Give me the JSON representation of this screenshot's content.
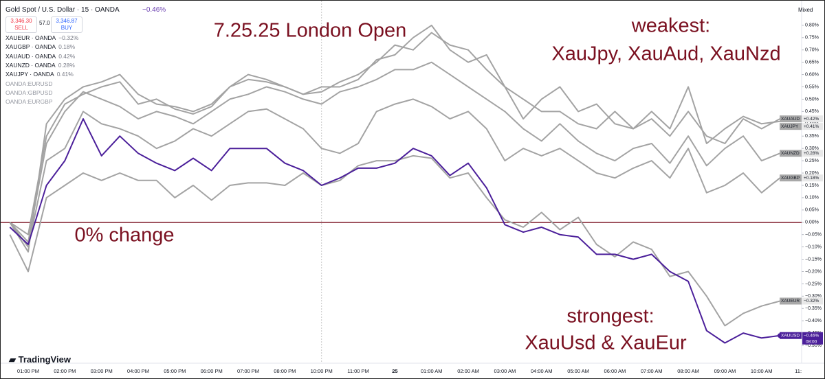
{
  "ui": {
    "symbol": "Gold Spot / U.S. Dollar · 15 · OANDA",
    "change": "−0.46%",
    "sell_price": "3,346.30",
    "sell": "SELL",
    "spread": "57.0",
    "buy_price": "3,346.87",
    "buy": "BUY",
    "indicators": [
      "OANDA:EURUSD",
      "OANDA:GBPUSD",
      "OANDA:EURGBP"
    ],
    "scale_mode": "Mixed",
    "logo": "TradingView",
    "countdown": "08:00"
  },
  "chart_data": {
    "type": "line",
    "annotations": [
      "7.25.25 London Open",
      "weakest:",
      "XauJpy, XauAud, XauNzd",
      "0% change",
      "strongest:",
      "XauUsd & XauEur"
    ],
    "categories": [
      null,
      "01:00 PM",
      null,
      "02:00 PM",
      null,
      "03:00 PM",
      null,
      "04:00 PM",
      null,
      "05:00 PM",
      null,
      "06:00 PM",
      null,
      "07:00 PM",
      null,
      "08:00 PM",
      null,
      "10:00 PM",
      null,
      "11:00 PM",
      null,
      "25",
      null,
      "01:00 AM",
      null,
      "02:00 AM",
      null,
      "03:00 AM",
      null,
      "04:00 AM",
      null,
      "05:00 AM",
      null,
      "06:00 AM",
      null,
      "07:00 AM",
      null,
      "08:00 AM",
      null,
      "09:00 AM",
      null,
      "10:00 AM",
      null,
      "11:"
    ],
    "series": [
      {
        "name": "XAUEUR",
        "legend": "XAUEUR · OANDA",
        "legend_value": "−0.32%",
        "color": "#a3a3a3",
        "values": [
          -0.05,
          -0.2,
          0.1,
          0.15,
          0.2,
          0.17,
          0.2,
          0.17,
          0.17,
          0.1,
          0.15,
          0.09,
          0.15,
          0.16,
          0.16,
          0.15,
          0.2,
          0.15,
          0.17,
          0.23,
          0.25,
          0.25,
          0.27,
          0.26,
          0.18,
          0.2,
          0.1,
          0.01,
          -0.02,
          0.04,
          -0.03,
          0.02,
          -0.09,
          -0.14,
          -0.08,
          -0.11,
          -0.22,
          -0.2,
          -0.3,
          -0.42,
          -0.37,
          -0.34,
          -0.32,
          null
        ],
        "value_labels": [
          null,
          null,
          null,
          null,
          null,
          null,
          null,
          null,
          null,
          null,
          null,
          null,
          null,
          null,
          null,
          null,
          null,
          null,
          null,
          null,
          null,
          null,
          null,
          null,
          null,
          null,
          null,
          null,
          null,
          null,
          null,
          null,
          null,
          null,
          null,
          null,
          null,
          null,
          null,
          null,
          null,
          null,
          "−0.32%",
          null
        ]
      },
      {
        "name": "XAUGBP",
        "legend": "XAUGBP · OANDA",
        "legend_value": "0.18%",
        "color": "#a3a3a3",
        "values": [
          0,
          -0.1,
          0.25,
          0.3,
          0.45,
          0.4,
          0.38,
          0.35,
          0.3,
          0.33,
          0.38,
          0.35,
          0.4,
          0.45,
          0.46,
          0.42,
          0.38,
          0.3,
          0.28,
          0.32,
          0.45,
          0.48,
          0.5,
          0.47,
          0.42,
          0.45,
          0.38,
          0.25,
          0.3,
          0.27,
          0.3,
          0.25,
          0.2,
          0.18,
          0.22,
          0.25,
          0.18,
          0.3,
          0.12,
          0.15,
          0.2,
          0.12,
          0.18,
          null
        ],
        "value_labels": [
          null,
          null,
          null,
          null,
          null,
          null,
          null,
          null,
          null,
          null,
          null,
          null,
          null,
          null,
          null,
          null,
          null,
          null,
          null,
          null,
          null,
          null,
          null,
          null,
          null,
          null,
          null,
          null,
          null,
          null,
          null,
          null,
          null,
          null,
          null,
          null,
          null,
          null,
          null,
          null,
          null,
          null,
          "+0.18%",
          null
        ]
      },
      {
        "name": "XAUAUD",
        "legend": "XAUAUD · OANDA",
        "legend_value": "0.42%",
        "color": "#a3a3a3",
        "values": [
          0,
          -0.05,
          0.35,
          0.48,
          0.52,
          0.55,
          0.57,
          0.48,
          0.5,
          0.46,
          0.44,
          0.47,
          0.55,
          0.58,
          0.57,
          0.55,
          0.52,
          0.53,
          0.57,
          0.6,
          0.65,
          0.72,
          0.7,
          0.77,
          0.72,
          0.7,
          0.62,
          0.55,
          0.5,
          0.45,
          0.45,
          0.4,
          0.38,
          0.45,
          0.38,
          0.42,
          0.35,
          0.45,
          0.35,
          0.32,
          0.42,
          0.38,
          0.42,
          null
        ],
        "value_labels": [
          null,
          null,
          null,
          null,
          null,
          null,
          null,
          null,
          null,
          null,
          null,
          null,
          null,
          null,
          null,
          null,
          null,
          null,
          null,
          null,
          null,
          null,
          null,
          null,
          null,
          null,
          null,
          null,
          null,
          null,
          null,
          null,
          null,
          null,
          null,
          null,
          null,
          null,
          null,
          null,
          null,
          null,
          "+0.42%",
          null
        ]
      },
      {
        "name": "XAUNZD",
        "legend": "XAUNZD · OANDA",
        "legend_value": "0.28%",
        "color": "#a3a3a3",
        "values": [
          0,
          -0.08,
          0.32,
          0.45,
          0.53,
          0.5,
          0.47,
          0.42,
          0.45,
          0.43,
          0.4,
          0.45,
          0.5,
          0.52,
          0.55,
          0.53,
          0.5,
          0.48,
          0.53,
          0.55,
          0.58,
          0.62,
          0.62,
          0.65,
          0.6,
          0.55,
          0.5,
          0.45,
          0.38,
          0.33,
          0.4,
          0.33,
          0.28,
          0.25,
          0.3,
          0.32,
          0.24,
          0.35,
          0.23,
          0.3,
          0.35,
          0.25,
          0.28,
          null
        ],
        "value_labels": [
          null,
          null,
          null,
          null,
          null,
          null,
          null,
          null,
          null,
          null,
          null,
          null,
          null,
          null,
          null,
          null,
          null,
          null,
          null,
          null,
          null,
          null,
          null,
          null,
          null,
          null,
          null,
          null,
          null,
          null,
          null,
          null,
          null,
          null,
          null,
          null,
          null,
          null,
          null,
          null,
          null,
          null,
          "+0.28%",
          null
        ]
      },
      {
        "name": "XAUJPY",
        "legend": "XAUJPY · OANDA",
        "legend_value": "0.41%",
        "color": "#a3a3a3",
        "values": [
          0,
          -0.12,
          0.4,
          0.5,
          0.55,
          0.57,
          0.6,
          0.52,
          0.48,
          0.47,
          0.45,
          0.48,
          0.55,
          0.6,
          0.58,
          0.55,
          0.52,
          0.55,
          0.55,
          0.58,
          0.66,
          0.68,
          0.75,
          0.8,
          0.7,
          0.65,
          0.68,
          0.55,
          0.42,
          0.5,
          0.55,
          0.45,
          0.48,
          0.4,
          0.38,
          0.45,
          0.38,
          0.55,
          0.32,
          0.38,
          0.43,
          0.4,
          0.41,
          null
        ],
        "value_labels": [
          null,
          null,
          null,
          null,
          null,
          null,
          null,
          null,
          null,
          null,
          null,
          null,
          null,
          null,
          null,
          null,
          null,
          null,
          null,
          null,
          null,
          null,
          null,
          null,
          null,
          null,
          null,
          null,
          null,
          null,
          null,
          null,
          null,
          null,
          null,
          null,
          null,
          null,
          null,
          null,
          null,
          null,
          "+0.41%",
          null
        ]
      },
      {
        "name": "XAUUSD",
        "color": "#4b1f9a",
        "values": [
          -0.02,
          -0.09,
          0.15,
          0.25,
          0.42,
          0.27,
          0.35,
          0.28,
          0.24,
          0.21,
          0.26,
          0.21,
          0.3,
          0.3,
          0.3,
          0.24,
          0.21,
          0.15,
          0.18,
          0.22,
          0.22,
          0.24,
          0.3,
          0.27,
          0.19,
          0.24,
          0.14,
          -0.01,
          -0.04,
          -0.02,
          -0.05,
          -0.06,
          -0.13,
          -0.13,
          -0.15,
          -0.13,
          -0.2,
          -0.24,
          -0.44,
          -0.49,
          -0.45,
          -0.47,
          -0.46,
          null
        ],
        "value_labels": [
          null,
          null,
          null,
          null,
          null,
          null,
          null,
          null,
          null,
          null,
          null,
          null,
          null,
          null,
          null,
          null,
          null,
          null,
          null,
          null,
          null,
          null,
          null,
          null,
          null,
          null,
          null,
          null,
          null,
          null,
          null,
          null,
          null,
          null,
          null,
          null,
          null,
          null,
          null,
          null,
          null,
          null,
          "−0.46%",
          null
        ]
      }
    ],
    "hline": 0,
    "hline_color": "#7a1020",
    "ylim": [
      -0.55,
      0.9
    ],
    "yticks": [
      {
        "value": 0.8,
        "label": "0.80%"
      },
      {
        "value": 0.75,
        "label": "0.75%"
      },
      {
        "value": 0.7,
        "label": "0.70%"
      },
      {
        "value": 0.65,
        "label": "0.65%"
      },
      {
        "value": 0.6,
        "label": "0.60%"
      },
      {
        "value": 0.55,
        "label": "0.55%"
      },
      {
        "value": 0.5,
        "label": "0.50%"
      },
      {
        "value": 0.45,
        "label": "0.45%"
      },
      {
        "value": 0.4,
        "label": "0.40%"
      },
      {
        "value": 0.35,
        "label": "0.35%"
      },
      {
        "value": 0.3,
        "label": "0.30%"
      },
      {
        "value": 0.25,
        "label": "0.25%"
      },
      {
        "value": 0.2,
        "label": "0.20%"
      },
      {
        "value": 0.15,
        "label": "0.15%"
      },
      {
        "value": 0.1,
        "label": "0.10%"
      },
      {
        "value": 0.05,
        "label": "0.05%"
      },
      {
        "value": 0,
        "label": "0.00%"
      },
      {
        "value": -0.05,
        "label": "−0.05%"
      },
      {
        "value": -0.1,
        "label": "−0.10%"
      },
      {
        "value": -0.15,
        "label": "−0.15%"
      },
      {
        "value": -0.2,
        "label": "−0.20%"
      },
      {
        "value": -0.25,
        "label": "−0.25%"
      },
      {
        "value": -0.3,
        "label": "−0.30%"
      },
      {
        "value": -0.35,
        "label": "−0.35%"
      },
      {
        "value": -0.4,
        "label": "−0.40%"
      },
      {
        "value": -0.45,
        "label": "−0.45%"
      },
      {
        "value": -0.5,
        "label": "−0.50%"
      }
    ],
    "grid": false
  }
}
